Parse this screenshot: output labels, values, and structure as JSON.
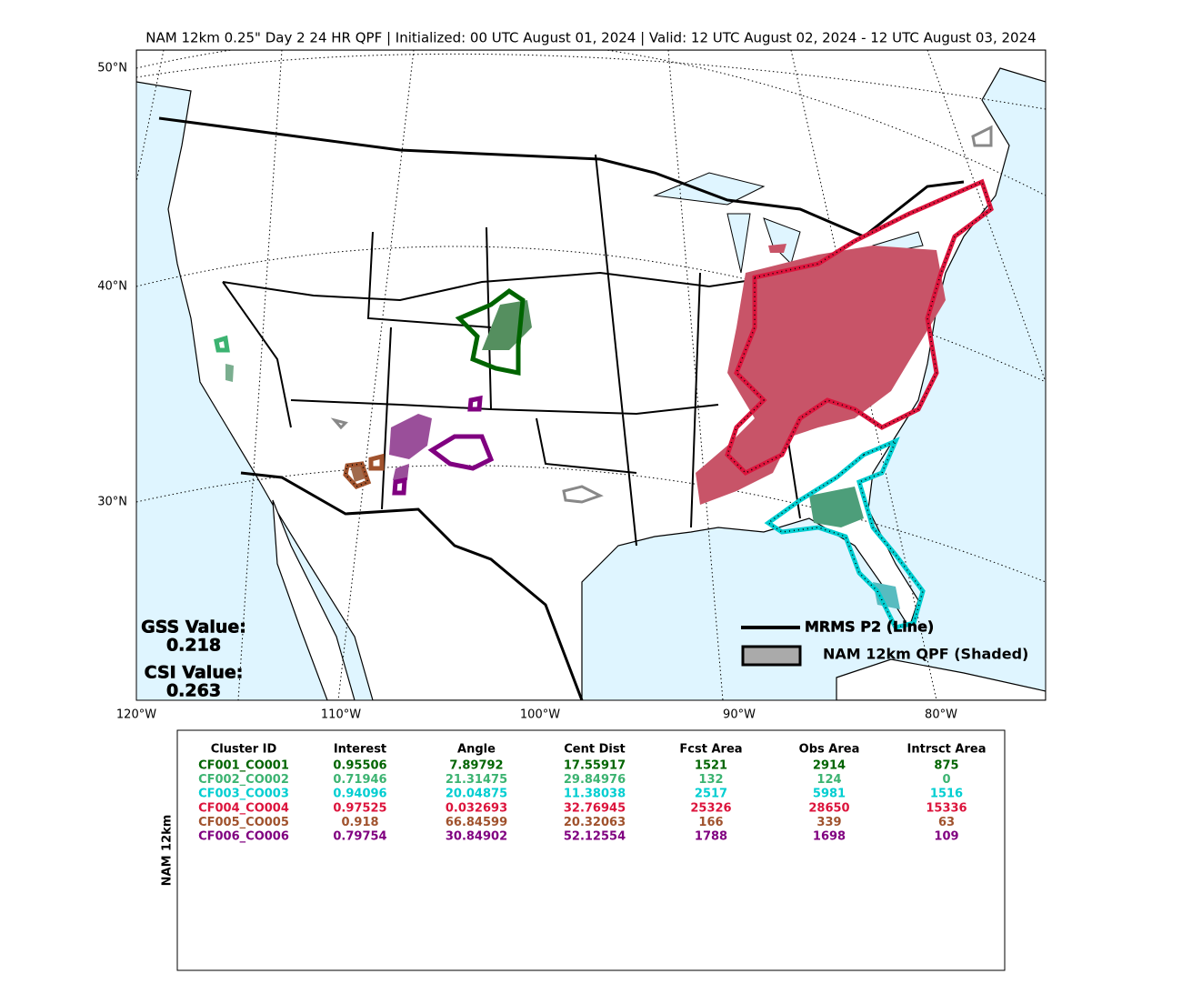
{
  "title": "NAM 12km 0.25\" Day 2 24 HR QPF | Initialized: 00 UTC August 01, 2024 | Valid: 12 UTC August 02, 2024 - 12 UTC August 03, 2024",
  "map": {
    "lat_labels": [
      "50°N",
      "40°N",
      "30°N"
    ],
    "lon_labels": [
      "120°W",
      "110°W",
      "100°W",
      "90°W",
      "80°W"
    ]
  },
  "scores": [
    {
      "label": "GSS Value:",
      "value": "0.218"
    },
    {
      "label": "CSI Value:",
      "value": "0.263"
    }
  ],
  "legend": [
    "MRMS P2 (Line)",
    "NAM 12km QPF (Shaded)"
  ],
  "table": {
    "side_label": "NAM 12km",
    "columns": [
      "Cluster ID",
      "Interest",
      "Angle",
      "Cent Dist",
      "Fcst Area",
      "Obs Area",
      "Intrsct Area"
    ],
    "row_colors": [
      "#006400",
      "#3cb371",
      "#00ced1",
      "#dc143c",
      "#a0522d",
      "#800080"
    ],
    "rows": [
      [
        "CF001_CO001",
        0.95506,
        7.89792,
        17.55917,
        1521,
        2914,
        875
      ],
      [
        "CF002_CO002",
        0.71946,
        21.31475,
        29.84976,
        132,
        124,
        0
      ],
      [
        "CF003_CO003",
        0.94096,
        20.04875,
        11.38038,
        2517,
        5981,
        1516
      ],
      [
        "CF004_CO004",
        0.97525,
        0.032693,
        32.76945,
        25326,
        28650,
        15336
      ],
      [
        "CF005_CO005",
        0.918,
        66.84599,
        20.32063,
        166,
        339,
        63
      ],
      [
        "CF006_CO006",
        0.79754,
        30.84902,
        52.12554,
        1788,
        1698,
        109
      ]
    ]
  }
}
